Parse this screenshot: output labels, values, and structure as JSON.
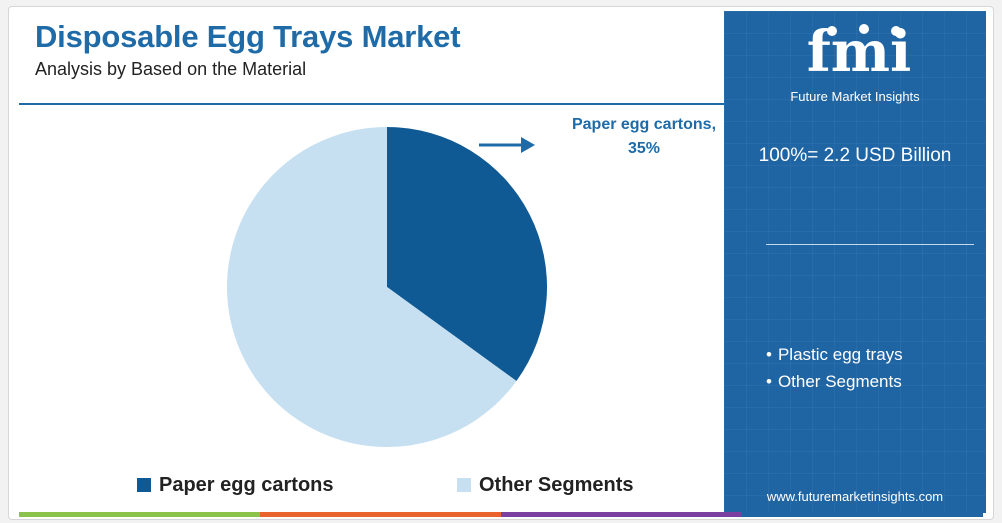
{
  "header": {
    "title": "Disposable Egg Trays Market",
    "subtitle": "Analysis by Based on the Material"
  },
  "chart_data": {
    "type": "pie",
    "slices": [
      {
        "label": "Paper egg cartons",
        "value": 35,
        "color": "#0f5a94"
      },
      {
        "label": "Other Segments",
        "value": 65,
        "color": "#c6e0f2"
      }
    ],
    "callout": "Paper egg cartons, 35%",
    "legend": [
      "Paper egg cartons",
      "Other Segments"
    ],
    "legend_position": "bottom"
  },
  "callout": {
    "line1": "Paper egg cartons,",
    "line2": "35%"
  },
  "legend": {
    "item1": "Paper egg cartons",
    "item2": "Other Segments"
  },
  "panel": {
    "brand_mark": "fmi",
    "brand_name": "Future Market Insights",
    "total": "100%= 2.2 USD Billion",
    "segments": [
      "Plastic egg trays",
      "Other Segments"
    ],
    "website": "www.futuremarketinsights.com",
    "background_color": "#1f64a3"
  },
  "bottom_bar_colors": [
    "#8bc34a",
    "#e8642c",
    "#7b3fa0",
    "#1f64a3"
  ]
}
